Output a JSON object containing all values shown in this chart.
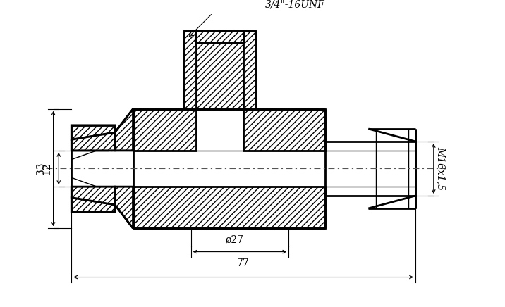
{
  "title": "",
  "bg_color": "#ffffff",
  "line_color": "#000000",
  "hatch_color": "#000000",
  "dim_color": "#000000",
  "centerline_color": "#888888",
  "lw_thick": 2.0,
  "lw_thin": 1.0,
  "lw_dim": 0.8,
  "annotations": {
    "unf_thread": "3/4\"-16UNF",
    "m16_thread": "M16x1,5",
    "dim_27": "ø27",
    "dim_77": "77",
    "dim_33": "33",
    "dim_12": "12"
  }
}
